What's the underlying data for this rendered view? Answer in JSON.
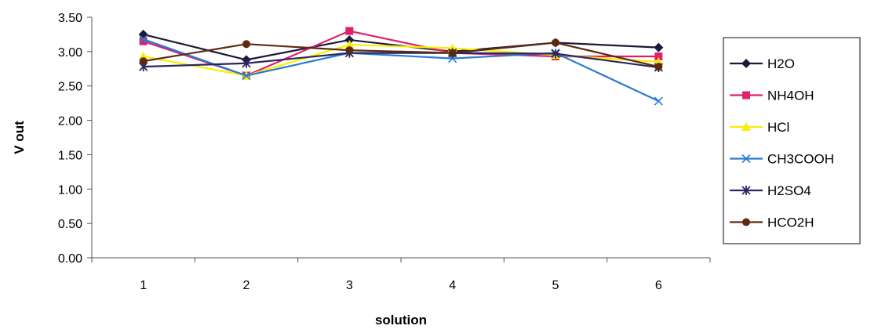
{
  "chart_data": {
    "type": "line",
    "title": "",
    "xlabel": "solution",
    "ylabel": "V out",
    "categories": [
      "1",
      "2",
      "3",
      "4",
      "5",
      "6"
    ],
    "y_tick_labels": [
      "0.00",
      "0.50",
      "1.00",
      "1.50",
      "2.00",
      "2.50",
      "3.00",
      "3.50"
    ],
    "ylim": [
      0,
      3.5
    ],
    "grid": false,
    "legend_position": "right",
    "series": [
      {
        "name": "H2O",
        "color": "#1a1a3a",
        "marker": "diamond",
        "values": [
          3.25,
          2.88,
          3.17,
          3.0,
          3.13,
          3.06
        ]
      },
      {
        "name": "NH4OH",
        "color": "#e0206a",
        "marker": "square",
        "values": [
          3.15,
          2.65,
          3.3,
          2.98,
          2.93,
          2.93
        ]
      },
      {
        "name": "HCl",
        "color": "#f5f000",
        "marker": "triangle",
        "values": [
          2.93,
          2.65,
          3.1,
          3.05,
          2.95,
          2.85
        ]
      },
      {
        "name": "CH3COOH",
        "color": "#2a7bd0",
        "marker": "x",
        "values": [
          3.18,
          2.65,
          2.98,
          2.9,
          2.98,
          2.28
        ]
      },
      {
        "name": "H2SO4",
        "color": "#2a2660",
        "marker": "star",
        "values": [
          2.78,
          2.83,
          2.98,
          2.98,
          2.97,
          2.77
        ]
      },
      {
        "name": "HCO2H",
        "color": "#5c2a10",
        "marker": "circle",
        "values": [
          2.86,
          3.11,
          3.02,
          2.98,
          3.13,
          2.78
        ]
      }
    ]
  }
}
